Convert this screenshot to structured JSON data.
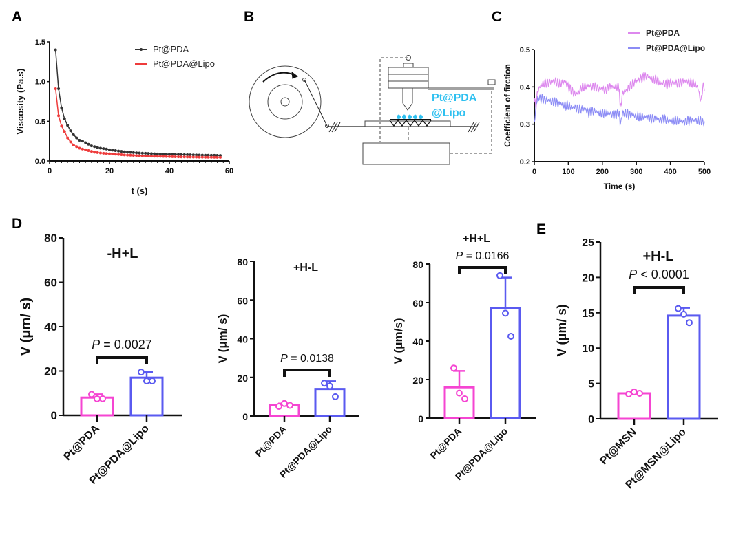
{
  "panels": {
    "A": "A",
    "B": "B",
    "C": "C",
    "D": "D",
    "E": "E"
  },
  "colors": {
    "pt_pda_a": "#333333",
    "pt_pda_lipo_a": "#ee3b3b",
    "pt_pda_c": "#dd88ee",
    "pt_pda_lipo_c": "#8c8cf5",
    "bar_pink": "#f545d2",
    "bar_blue": "#5a5af0",
    "diagram_label": "#2ec0f0"
  },
  "diagram": {
    "label_line1": "Pt@PDA",
    "label_line2": "@Lipo"
  },
  "chart_data": [
    {
      "id": "A",
      "type": "line",
      "xlabel": "t (s)",
      "ylabel": "Viscosity (Pa.s)",
      "xlim": [
        0,
        60
      ],
      "ylim": [
        0,
        1.5
      ],
      "xticks": [
        "0",
        "20",
        "40",
        "60"
      ],
      "yticks": [
        "0.0",
        "0.5",
        "1.0",
        "1.5"
      ],
      "legend_position": "top-right",
      "x": [
        2,
        3,
        4,
        5,
        6,
        7,
        8,
        9,
        10,
        11,
        12,
        13,
        14,
        15,
        16,
        17,
        18,
        19,
        20,
        21,
        22,
        23,
        24,
        25,
        26,
        27,
        28,
        29,
        30,
        31,
        32,
        33,
        34,
        35,
        36,
        37,
        38,
        39,
        40,
        41,
        42,
        43,
        44,
        45,
        46,
        47,
        48,
        49,
        50,
        51,
        52,
        53,
        54,
        55,
        56,
        57
      ],
      "series": [
        {
          "name": "Pt@PDA",
          "values": [
            1.4,
            0.91,
            0.67,
            0.53,
            0.45,
            0.38,
            0.33,
            0.29,
            0.26,
            0.25,
            0.23,
            0.21,
            0.19,
            0.18,
            0.17,
            0.16,
            0.155,
            0.15,
            0.14,
            0.135,
            0.13,
            0.125,
            0.12,
            0.115,
            0.11,
            0.108,
            0.105,
            0.102,
            0.1,
            0.098,
            0.096,
            0.094,
            0.092,
            0.09,
            0.088,
            0.087,
            0.086,
            0.085,
            0.084,
            0.083,
            0.082,
            0.081,
            0.08,
            0.079,
            0.078,
            0.077,
            0.076,
            0.075,
            0.074,
            0.073,
            0.072,
            0.071,
            0.07,
            0.07,
            0.069,
            0.068
          ]
        },
        {
          "name": "Pt@PDA@Lipo",
          "values": [
            0.91,
            0.57,
            0.44,
            0.37,
            0.29,
            0.24,
            0.2,
            0.18,
            0.16,
            0.15,
            0.14,
            0.13,
            0.12,
            0.11,
            0.105,
            0.1,
            0.097,
            0.093,
            0.09,
            0.087,
            0.084,
            0.081,
            0.078,
            0.075,
            0.073,
            0.071,
            0.069,
            0.067,
            0.065,
            0.063,
            0.062,
            0.061,
            0.06,
            0.059,
            0.058,
            0.057,
            0.056,
            0.055,
            0.054,
            0.053,
            0.052,
            0.051,
            0.05,
            0.05,
            0.049,
            0.049,
            0.048,
            0.048,
            0.047,
            0.047,
            0.046,
            0.046,
            0.045,
            0.045,
            0.044,
            0.044
          ]
        }
      ]
    },
    {
      "id": "C",
      "type": "line",
      "xlabel": "Time (s)",
      "ylabel": "Coefficient of firction",
      "xlim": [
        0,
        500
      ],
      "ylim": [
        0.2,
        0.5
      ],
      "xticks": [
        "0",
        "100",
        "200",
        "300",
        "400",
        "500"
      ],
      "yticks": [
        "0.2",
        "0.3",
        "0.4",
        "0.5"
      ],
      "legend_position": "top-right",
      "x": [
        0,
        5,
        10,
        20,
        30,
        40,
        50,
        60,
        70,
        80,
        90,
        100,
        110,
        120,
        130,
        140,
        150,
        160,
        170,
        180,
        190,
        200,
        210,
        220,
        230,
        240,
        250,
        252,
        260,
        270,
        280,
        290,
        300,
        310,
        320,
        330,
        340,
        350,
        360,
        370,
        380,
        390,
        400,
        410,
        420,
        430,
        440,
        450,
        460,
        470,
        480,
        490,
        495,
        500
      ],
      "series": [
        {
          "name": "Pt@PDA",
          "values": [
            0.36,
            0.35,
            0.39,
            0.405,
            0.41,
            0.41,
            0.415,
            0.415,
            0.41,
            0.41,
            0.415,
            0.4,
            0.39,
            0.38,
            0.385,
            0.4,
            0.4,
            0.405,
            0.4,
            0.4,
            0.395,
            0.395,
            0.39,
            0.4,
            0.4,
            0.4,
            0.4,
            0.34,
            0.385,
            0.39,
            0.4,
            0.41,
            0.415,
            0.42,
            0.425,
            0.43,
            0.425,
            0.42,
            0.42,
            0.41,
            0.41,
            0.405,
            0.41,
            0.41,
            0.41,
            0.41,
            0.415,
            0.415,
            0.41,
            0.41,
            0.4,
            0.36,
            0.4,
            0.4
          ]
        },
        {
          "name": "Pt@PDA@Lipo",
          "values": [
            0.3,
            0.35,
            0.37,
            0.37,
            0.365,
            0.365,
            0.36,
            0.36,
            0.355,
            0.355,
            0.35,
            0.35,
            0.345,
            0.345,
            0.34,
            0.34,
            0.34,
            0.33,
            0.335,
            0.335,
            0.33,
            0.33,
            0.33,
            0.33,
            0.325,
            0.325,
            0.33,
            0.3,
            0.33,
            0.33,
            0.325,
            0.325,
            0.32,
            0.32,
            0.32,
            0.32,
            0.315,
            0.315,
            0.315,
            0.31,
            0.315,
            0.31,
            0.31,
            0.31,
            0.31,
            0.31,
            0.305,
            0.31,
            0.31,
            0.31,
            0.31,
            0.31,
            0.305,
            0.305
          ]
        }
      ]
    },
    {
      "id": "D1",
      "type": "bar",
      "title": "-H+L",
      "ylabel": "V (μm/ s)",
      "ylim": [
        0,
        80
      ],
      "yticks": [
        "0",
        "20",
        "40",
        "60",
        "80"
      ],
      "categories": [
        "Pt@PDA",
        "Pt@PDA@Lipo"
      ],
      "values": [
        8,
        17
      ],
      "error_top": [
        9.5,
        19.5
      ],
      "points": [
        [
          9.5,
          7.5,
          7.5
        ],
        [
          19.5,
          15.5,
          15.5
        ]
      ],
      "pvalue": "P = 0.0027"
    },
    {
      "id": "D2",
      "type": "bar",
      "title": "+H-L",
      "ylabel": "V (μm/ s)",
      "ylim": [
        0,
        80
      ],
      "yticks": [
        "0",
        "20",
        "40",
        "60",
        "80"
      ],
      "categories": [
        "Pt@PDA",
        "Pt@PDA@Lipo"
      ],
      "values": [
        5.8,
        14
      ],
      "error_top": [
        6.5,
        18
      ],
      "points": [
        [
          5,
          6.5,
          5.5
        ],
        [
          17,
          15.5,
          10
        ]
      ],
      "pvalue": "P = 0.0138"
    },
    {
      "id": "D3",
      "type": "bar",
      "title": "+H+L",
      "ylabel": "V (μm/s)",
      "ylim": [
        0,
        80
      ],
      "yticks": [
        "0",
        "20",
        "40",
        "60",
        "80"
      ],
      "categories": [
        "Pt@PDA",
        "Pt@PDA@Lipo"
      ],
      "values": [
        16,
        57
      ],
      "error_top": [
        24.5,
        73
      ],
      "points": [
        [
          26,
          13,
          10
        ],
        [
          74,
          54.5,
          42.5
        ]
      ],
      "pvalue": "P = 0.0166"
    },
    {
      "id": "E",
      "type": "bar",
      "title": "+H-L",
      "ylabel": "V (μm/ s)",
      "ylim": [
        0,
        25
      ],
      "yticks": [
        "0",
        "5",
        "10",
        "15",
        "20",
        "25"
      ],
      "categories": [
        "Pt@MSN",
        "Pt@MSN@Lipo"
      ],
      "values": [
        3.6,
        14.6
      ],
      "error_top": [
        3.8,
        15.7
      ],
      "points": [
        [
          3.5,
          3.8,
          3.6
        ],
        [
          15.6,
          14.8,
          13.6
        ]
      ],
      "pvalue": "P < 0.0001"
    }
  ]
}
